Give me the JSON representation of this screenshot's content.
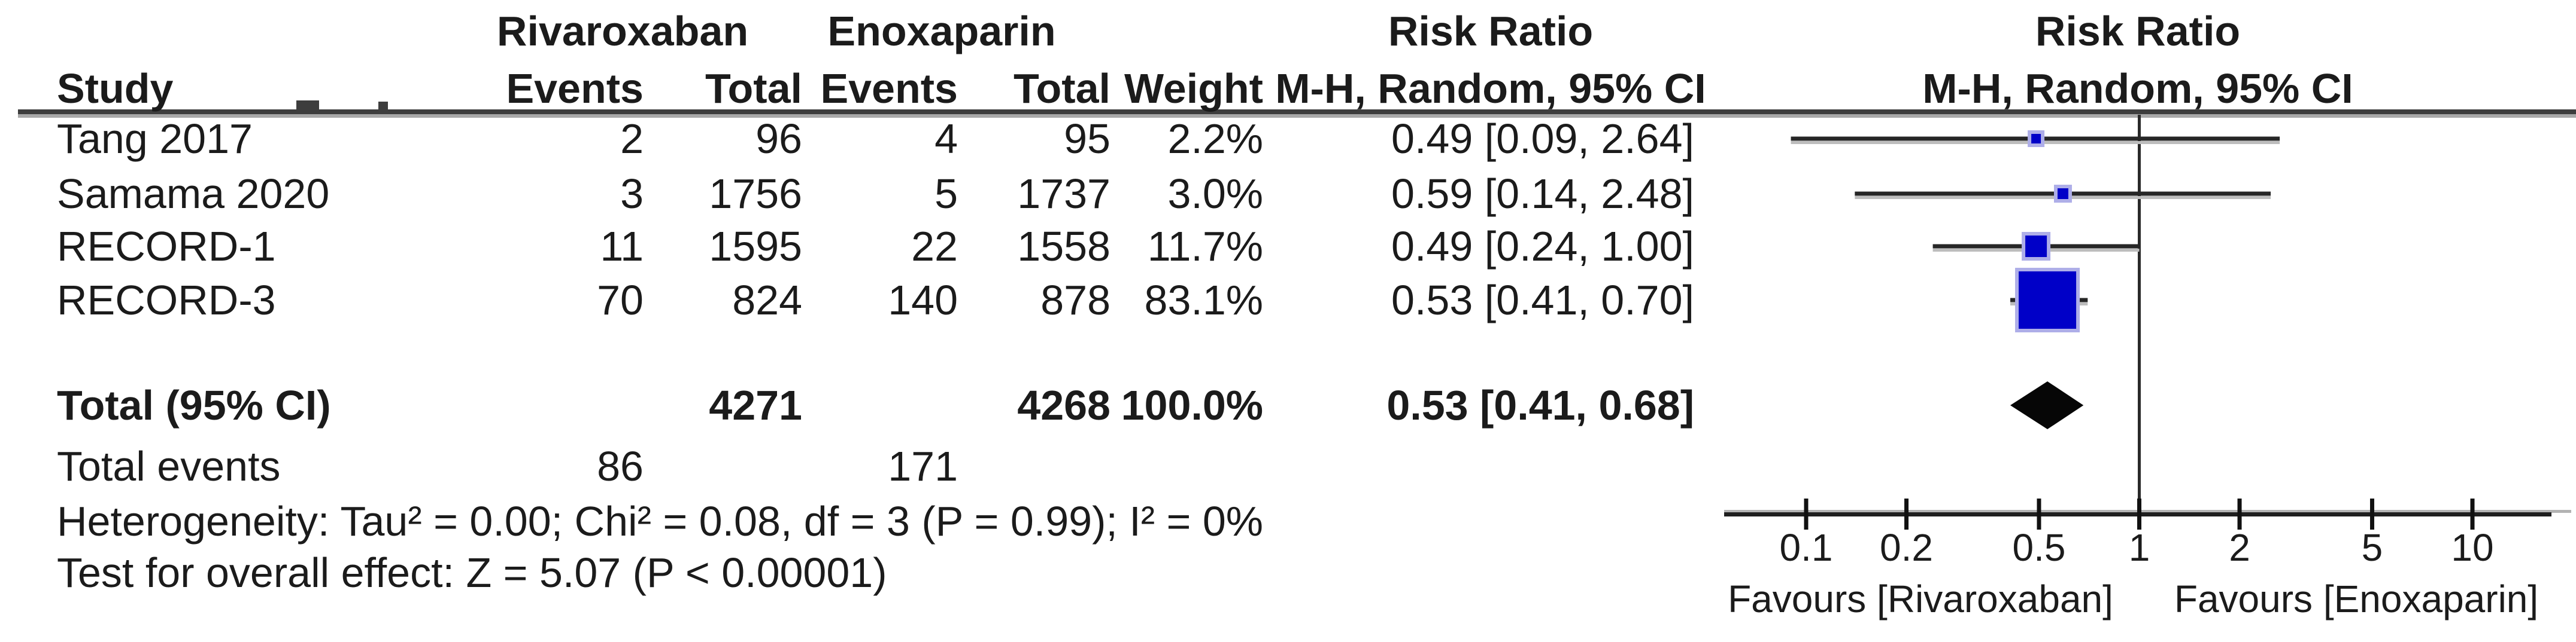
{
  "table": {
    "group_headers": {
      "treatment": "Rivaroxaban",
      "control": "Enoxaparin"
    },
    "columns": {
      "study": "Study",
      "events": "Events",
      "total": "Total",
      "weight": "Weight"
    },
    "effect_header": {
      "line1": "Risk Ratio",
      "line2": "M-H, Random, 95% CI"
    },
    "plot_header": {
      "line1": "Risk Ratio",
      "line2": "M-H, Random, 95% CI"
    }
  },
  "chart_data": {
    "type": "forest",
    "effect_measure": "Risk Ratio",
    "method": "M-H, Random, 95% CI",
    "x_scale": "log",
    "x_ticks": [
      0.1,
      0.2,
      0.5,
      1,
      2,
      5,
      10
    ],
    "x_range": [
      0.1,
      10
    ],
    "null_value": 1,
    "studies": [
      {
        "study": "Tang 2017",
        "events_1": 2,
        "total_1": 96,
        "events_2": 4,
        "total_2": 95,
        "weight_pct": 2.2,
        "rr": 0.49,
        "ci_low": 0.09,
        "ci_high": 2.64
      },
      {
        "study": "Samama 2020",
        "events_1": 3,
        "total_1": 1756,
        "events_2": 5,
        "total_2": 1737,
        "weight_pct": 3.0,
        "rr": 0.59,
        "ci_low": 0.14,
        "ci_high": 2.48
      },
      {
        "study": "RECORD-1",
        "events_1": 11,
        "total_1": 1595,
        "events_2": 22,
        "total_2": 1558,
        "weight_pct": 11.7,
        "rr": 0.49,
        "ci_low": 0.24,
        "ci_high": 1.0
      },
      {
        "study": "RECORD-3",
        "events_1": 70,
        "total_1": 824,
        "events_2": 140,
        "total_2": 878,
        "weight_pct": 83.1,
        "rr": 0.53,
        "ci_low": 0.41,
        "ci_high": 0.7
      }
    ],
    "total": {
      "label": "Total (95% CI)",
      "total_1": 4271,
      "total_2": 4268,
      "weight_pct": 100.0,
      "rr": 0.53,
      "ci_low": 0.41,
      "ci_high": 0.68
    },
    "total_events": {
      "label": "Total events",
      "events_1": 86,
      "events_2": 171
    },
    "heterogeneity": "Heterogeneity: Tau² = 0.00; Chi² = 0.08, df = 3 (P = 0.99); I² = 0%",
    "overall_effect": "Test for overall effect: Z = 5.07 (P < 0.00001)",
    "favours_left": "Favours [Rivaroxaban]",
    "favours_right": "Favours [Enoxaparin]",
    "legend_position": "none",
    "grid": false
  },
  "colors": {
    "text": "#1B1B1B",
    "ci_line": "#262626",
    "ci_line_shadow": "#BDBDBD",
    "axis": "#1F1F1F",
    "axis_shadow": "#B3B3B3",
    "rule": "#3D3D3D",
    "rule_shadow": "#A8A8A8",
    "marker": "#0000C8",
    "marker_halo": "#AEAEE8",
    "diamond": "#060606",
    "null_line": "#2A2A2A"
  }
}
